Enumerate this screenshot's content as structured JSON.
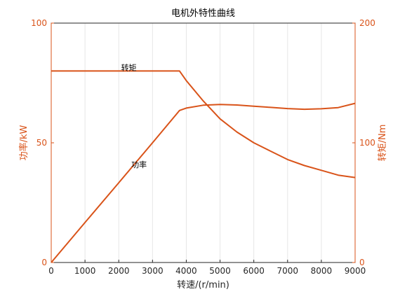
{
  "chart_data": {
    "type": "line",
    "title": "电机外特性曲线",
    "xlabel": "转速/(r/min)",
    "ylabel_left": "功率/kW",
    "ylabel_right": "转矩/Nm",
    "xlim": [
      0,
      9000
    ],
    "ylim_left": [
      0,
      100
    ],
    "ylim_right": [
      0,
      200
    ],
    "x_ticks": [
      0,
      1000,
      2000,
      3000,
      4000,
      5000,
      6000,
      7000,
      8000,
      9000
    ],
    "y_ticks_left": [
      0,
      50,
      100
    ],
    "y_ticks_right": [
      0,
      100,
      200
    ],
    "grid": "vertical",
    "series": [
      {
        "name": "转矩",
        "axis": "right",
        "x": [
          0,
          1000,
          2000,
          3000,
          3800,
          4000,
          4500,
          5000,
          5500,
          6000,
          6500,
          7000,
          7500,
          8000,
          8500,
          9000
        ],
        "y": [
          160,
          160,
          160,
          160,
          160,
          152,
          135,
          120,
          109,
          100,
          93,
          86,
          81,
          77,
          73,
          71
        ]
      },
      {
        "name": "功率",
        "axis": "left",
        "x": [
          0,
          1000,
          2000,
          3000,
          3800,
          4000,
          4500,
          5000,
          5500,
          6000,
          6500,
          7000,
          7500,
          8000,
          8500,
          9000
        ],
        "y": [
          0,
          16.7,
          33.3,
          50.0,
          63.5,
          64.5,
          65.7,
          66.0,
          65.8,
          65.3,
          64.8,
          64.3,
          64.0,
          64.2,
          64.7,
          66.5
        ]
      }
    ],
    "annotations": [
      {
        "text": "转矩",
        "series": "转矩",
        "at_x": 2300
      },
      {
        "text": "功率",
        "series": "功率",
        "at_x": 2600
      }
    ],
    "colors": {
      "line": "#d95319",
      "right_axis": "#d95319",
      "left_axis": "#d95319",
      "grid": "#e6e6e6",
      "frame": "#262626"
    }
  }
}
